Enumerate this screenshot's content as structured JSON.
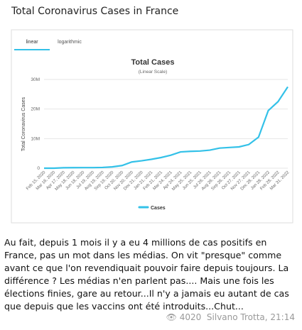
{
  "header": {
    "title": "Total Coronavirus Cases in France"
  },
  "tabs": [
    "linear",
    "logarithmic"
  ],
  "chart_data": {
    "type": "line",
    "title": "Total Cases",
    "subtitle": "(Linear Scale)",
    "y_label": "Total Coronavirus Cases",
    "categories": [
      "Feb 15, 2020",
      "Mar 16, 2020",
      "Apr 17, 2020",
      "May 18, 2020",
      "Jun 18, 2020",
      "Jul 19, 2020",
      "Aug 19, 2020",
      "Sep 19, 2020",
      "Oct 20, 2020",
      "Nov 20, 2020",
      "Dec 21, 2020",
      "Jan 21, 2021",
      "Feb 21, 2021",
      "Mar 24, 2021",
      "Apr 24, 2021",
      "May 25, 2021",
      "Jun 25, 2021",
      "Jul 26, 2021",
      "Aug 26, 2021",
      "Sep 26, 2021",
      "Oct 27, 2021",
      "Nov 27, 2021",
      "Dec 28, 2021",
      "Jan 28, 2022",
      "Feb 28, 2022",
      "Mar 31, 2022"
    ],
    "series": [
      {
        "name": "Cases",
        "color": "#33c1e8",
        "values": [
          0,
          5000,
          150000,
          180000,
          190000,
          200000,
          250000,
          450000,
          900000,
          2100000,
          2500000,
          3000000,
          3600000,
          4400000,
          5500000,
          5700000,
          5800000,
          6100000,
          6800000,
          7000000,
          7200000,
          8000000,
          10500000,
          19500000,
          22500000,
          27500000
        ]
      }
    ],
    "ylim": [
      0,
      30000000
    ],
    "yticks": [
      {
        "value": 0,
        "label": "0"
      },
      {
        "value": 10000000,
        "label": "10M"
      },
      {
        "value": 20000000,
        "label": "20M"
      },
      {
        "value": 30000000,
        "label": "30M"
      }
    ],
    "grid": true
  },
  "message": {
    "text": "Au fait, depuis 1 mois il y a eu 4 millions de cas positifs en France, pas un mot dans les médias. On vit \"presque\" comme avant ce que l'on revendiquait pouvoir faire depuis toujours. La différence ? Les médias n'en parlent pas.... Mais une fois les élections finies, gare au retour...Il n'y a jamais eu autant de cas que depuis que les vaccins ont été introduits...Chut...",
    "views": "4020",
    "author": "Silvano Trotta",
    "time": "21:14"
  }
}
